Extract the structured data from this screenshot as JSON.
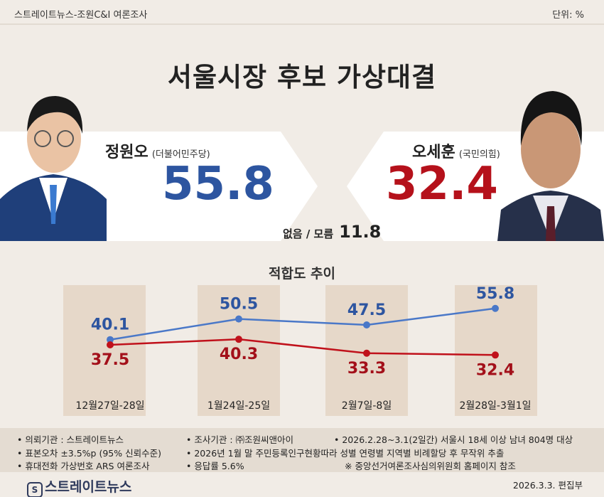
{
  "header": {
    "source": "스트레이트뉴스-조원C&I 여론조사",
    "unit": "단위: %"
  },
  "title": "서울시장 후보 가상대결",
  "candidates": [
    {
      "name": "정원오",
      "party": "(더불어민주당)",
      "value": "55.8",
      "color": "#2d55a0"
    },
    {
      "name": "오세훈",
      "party": "(국민의힘)",
      "value": "32.4",
      "color": "#b5111b"
    }
  ],
  "undecided": {
    "label": "없음 / 모름",
    "value": "11.8"
  },
  "chart_data": {
    "type": "line",
    "title": "적합도 추이",
    "categories": [
      "12월27일-28일",
      "1월24일-25일",
      "2월7일-8일",
      "2월28일-3월1일"
    ],
    "series": [
      {
        "values": [
          40.1,
          50.5,
          47.5,
          55.8
        ],
        "color": "#4a78c8",
        "label_color": "#2d55a0"
      },
      {
        "values": [
          37.5,
          40.3,
          33.3,
          32.4
        ],
        "color": "#c0111b",
        "label_color": "#a3101a"
      }
    ]
  },
  "footnotes": [
    "• 의뢰기관 : 스트레이트뉴스",
    "• 조사기관 : ㈜조원씨앤아이",
    "• 2026.2.28~3.1(2일간) 서울시 18세 이상 남녀 804명 대상",
    "• 표본오차 ±3.5%p (95% 신뢰수준)",
    "• 2026년 1월 말 주민등록인구현황따라 성별 연령별 지역별 비례할당 후 무작위 추출",
    "• 휴대전화 가상번호 ARS 여론조사",
    "• 응답률 5.6%",
    "※ 중앙선거여론조사심의위원회 홈페이지 참조"
  ],
  "footer": {
    "logo": "스트레이트뉴스",
    "editor": "2026.3.3.  편집부"
  }
}
